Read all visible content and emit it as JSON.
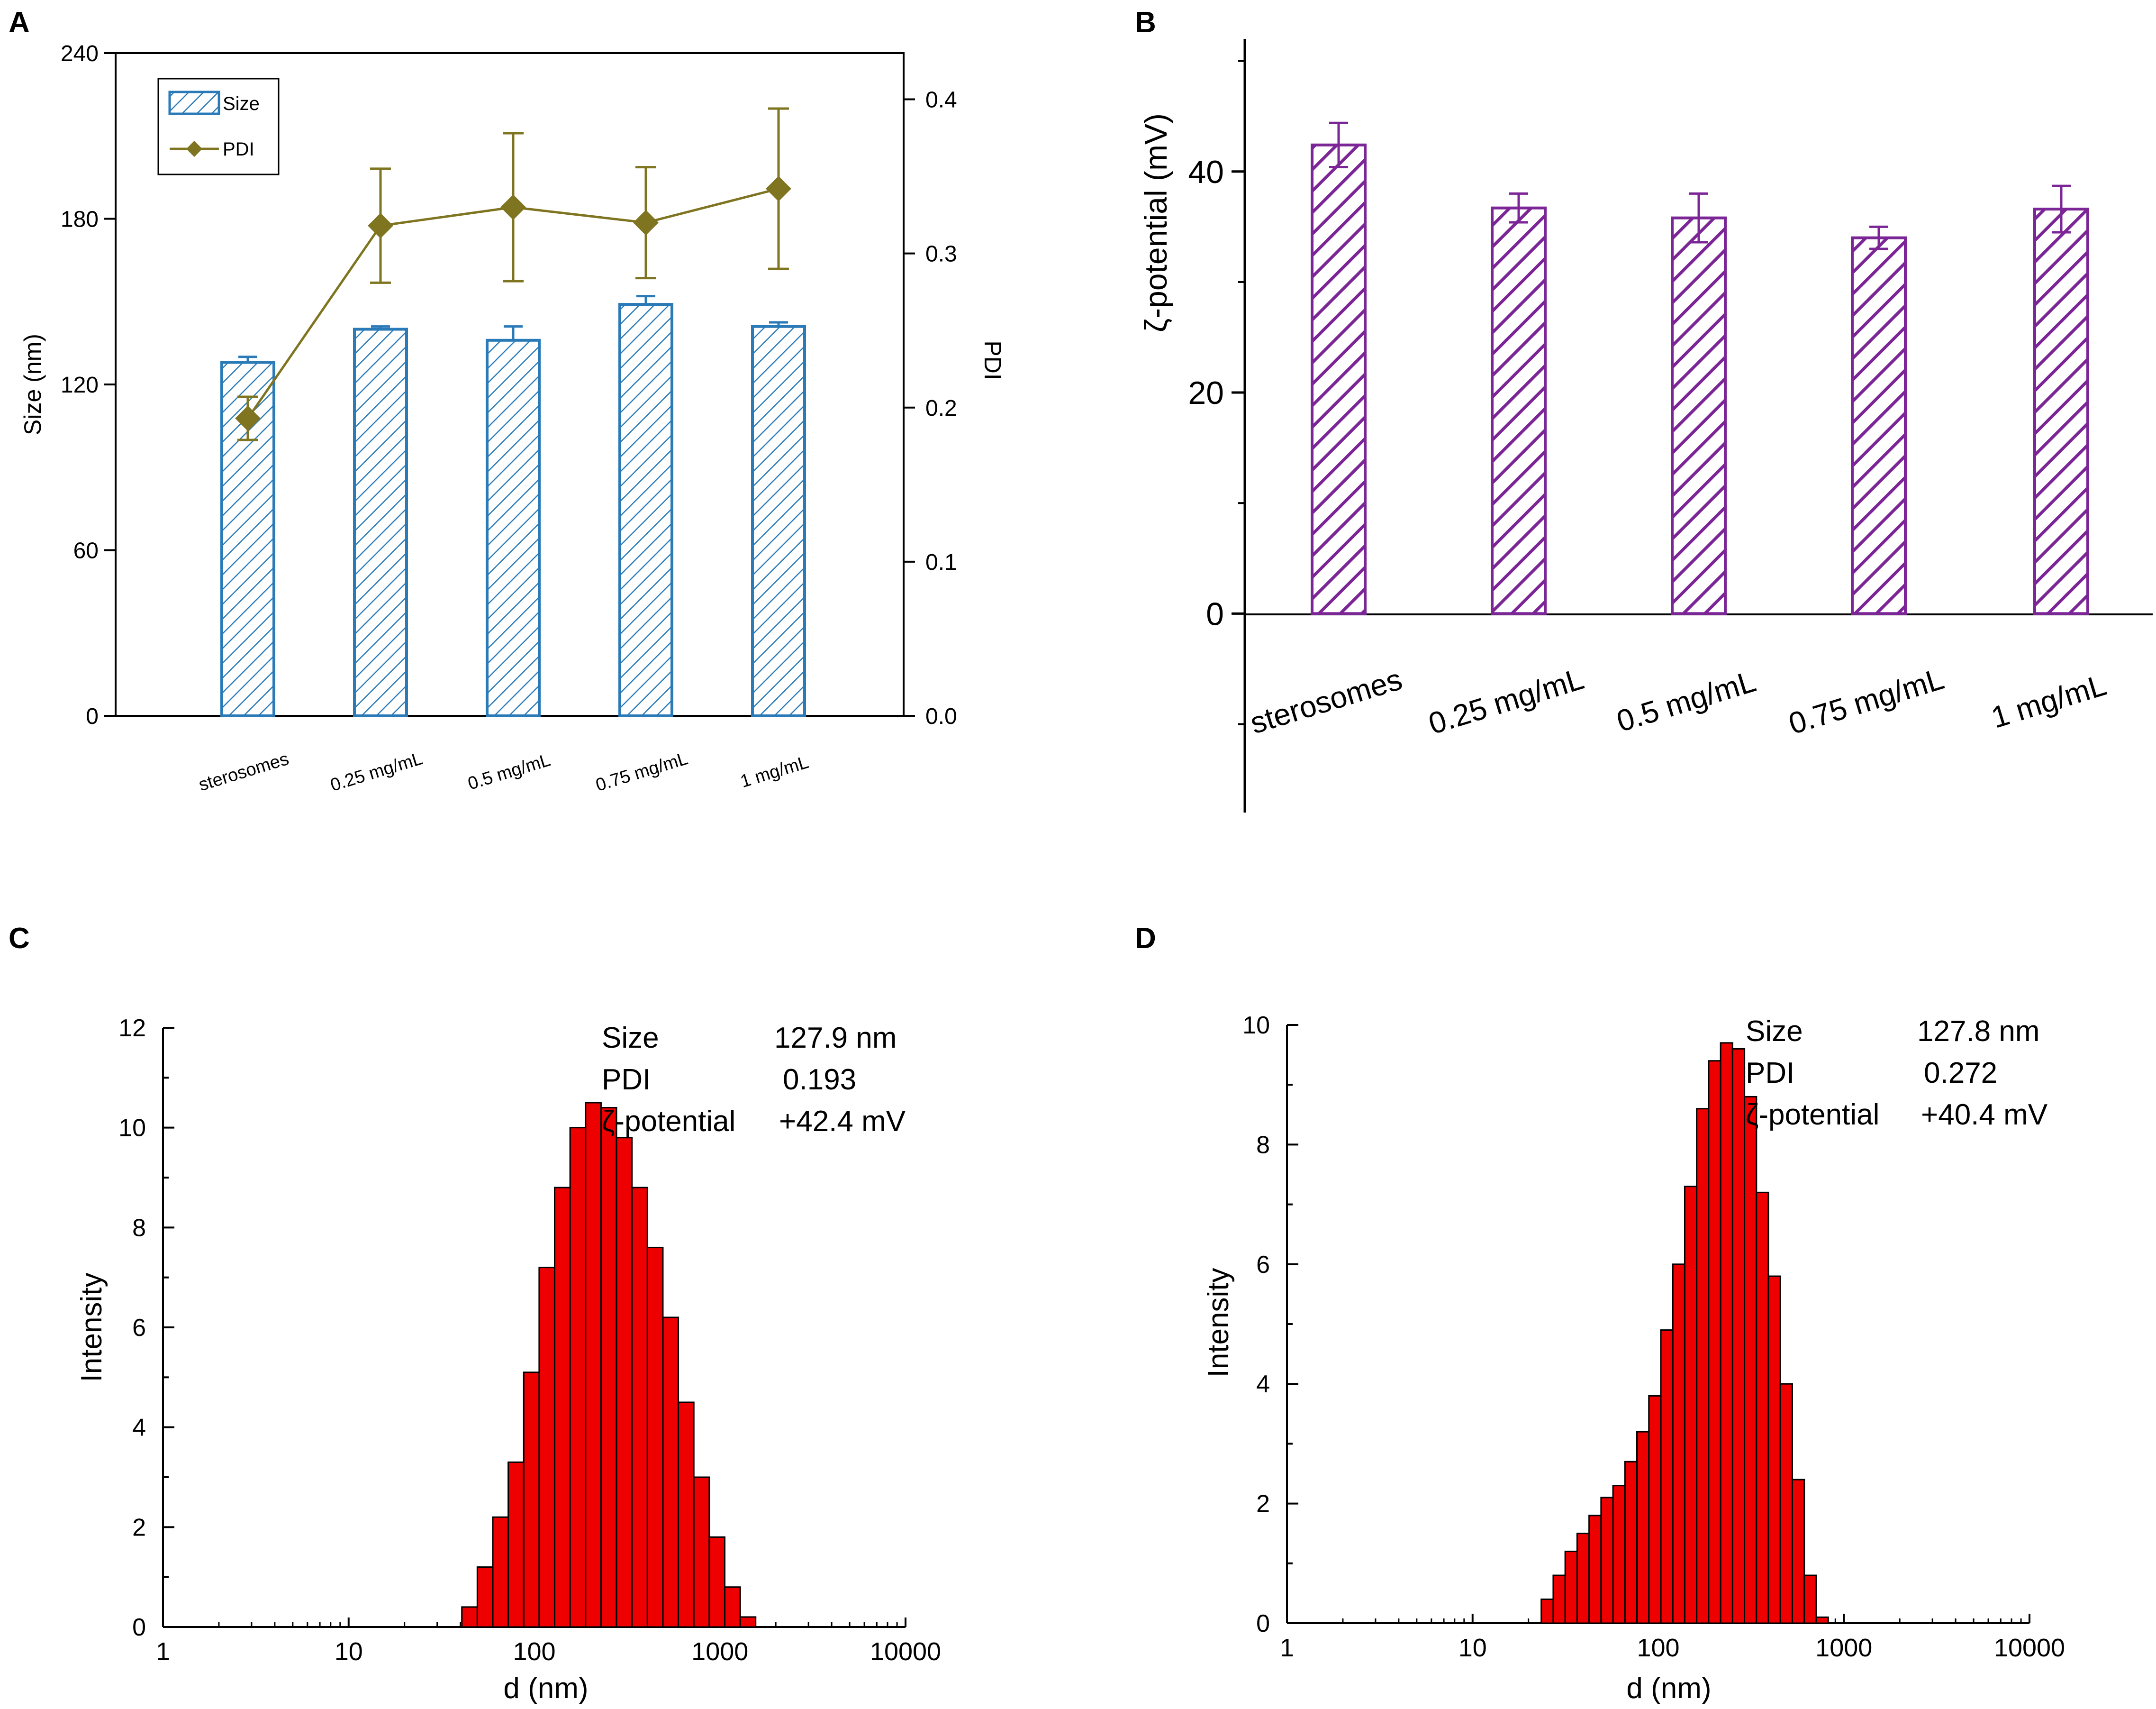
{
  "colors": {
    "size_bar": "#2a7ab8",
    "pdi_line": "#7f7420",
    "zeta_bar": "#7b2596",
    "hist_fill": "#ee0000",
    "axis": "#000000"
  },
  "panels": {
    "a": {
      "label": "A"
    },
    "b": {
      "label": "B"
    },
    "c": {
      "label": "C"
    },
    "d": {
      "label": "D"
    }
  },
  "chart_data": [
    {
      "id": "A",
      "type": "bar+line",
      "title": "",
      "categories": [
        "sterosomes",
        "0.25 mg/mL",
        "0.5 mg/mL",
        "0.75 mg/mL",
        "1 mg/mL"
      ],
      "series": [
        {
          "name": "Size",
          "axis": "left",
          "kind": "bar",
          "values": [
            128,
            140,
            136,
            149,
            141
          ],
          "errors": [
            2,
            1,
            5,
            3,
            1.5
          ]
        },
        {
          "name": "PDI",
          "axis": "right",
          "kind": "line",
          "values": [
            0.193,
            0.318,
            0.33,
            0.32,
            0.342
          ],
          "errors": [
            0.014,
            0.037,
            0.048,
            0.036,
            0.052
          ]
        }
      ],
      "ylabel": "Size (nm)",
      "ylim": [
        0,
        240
      ],
      "yticks": [
        "0",
        "60",
        "120",
        "180",
        "240"
      ],
      "y2label": "PDI",
      "y2lim": [
        0.0,
        0.43
      ],
      "y2ticks": [
        "0.0",
        "0.1",
        "0.2",
        "0.3",
        "0.4"
      ],
      "legend": [
        "Size",
        "PDI"
      ],
      "legend_position": "top-left"
    },
    {
      "id": "B",
      "type": "bar",
      "title": "",
      "categories": [
        "sterosomes",
        "0.25 mg/mL",
        "0.5 mg/mL",
        "0.75 mg/mL",
        "1 mg/mL"
      ],
      "values": [
        42.4,
        36.7,
        35.8,
        34.0,
        36.6
      ],
      "errors": [
        2.0,
        1.3,
        2.2,
        1.0,
        2.1
      ],
      "ylabel": "ζ-potential (mV)",
      "ylim": [
        -18,
        52
      ],
      "yticks": [
        "0",
        "20",
        "40"
      ]
    },
    {
      "id": "C",
      "type": "histogram",
      "x_scale": "log",
      "xlim": [
        1,
        10000
      ],
      "xticks": [
        "1",
        "10",
        "100",
        "1000",
        "10000"
      ],
      "xlabel": "d (nm)",
      "ylabel": "Intensity",
      "ylim": [
        0,
        12
      ],
      "yticks": [
        "0",
        "2",
        "4",
        "6",
        "8",
        "10",
        "12"
      ],
      "bins_log_start": 1.61,
      "bins_log_width": 0.0833,
      "values": [
        0.4,
        1.2,
        2.2,
        3.3,
        5.1,
        7.2,
        8.8,
        10.0,
        10.5,
        10.4,
        9.8,
        8.8,
        7.6,
        6.2,
        4.5,
        3.0,
        1.8,
        0.8,
        0.2
      ],
      "annotation": [
        [
          "Size",
          "127.9 nm"
        ],
        [
          "PDI",
          "0.193"
        ],
        [
          "ζ-potential",
          "+42.4 mV"
        ]
      ]
    },
    {
      "id": "D",
      "type": "histogram",
      "x_scale": "log",
      "xlim": [
        1,
        10000
      ],
      "xticks": [
        "1",
        "10",
        "100",
        "1000",
        "10000"
      ],
      "xlabel": "d (nm)",
      "ylabel": "Intensity",
      "ylim": [
        0,
        10
      ],
      "yticks": [
        "0",
        "2",
        "4",
        "6",
        "8",
        "10"
      ],
      "bins_log_start": 1.37,
      "bins_log_width": 0.0644,
      "values": [
        0.4,
        0.8,
        1.2,
        1.5,
        1.8,
        2.1,
        2.3,
        2.7,
        3.2,
        3.8,
        4.9,
        6.0,
        7.3,
        8.6,
        9.4,
        9.7,
        9.6,
        8.8,
        7.2,
        5.8,
        4.0,
        2.4,
        0.8,
        0.1
      ],
      "annotation": [
        [
          "Size",
          "127.8 nm"
        ],
        [
          "PDI",
          "0.272"
        ],
        [
          "ζ-potential",
          "+40.4 mV"
        ]
      ]
    }
  ]
}
